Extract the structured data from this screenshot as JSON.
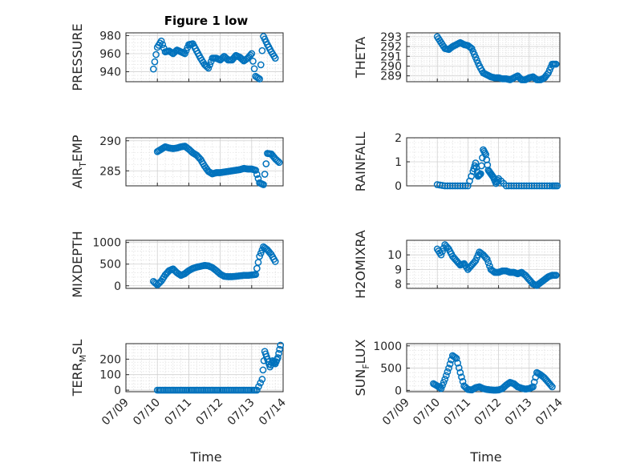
{
  "figure": {
    "title": "Figure 1 low",
    "xlabel": "Time",
    "date_ticks": [
      "07/09",
      "07/10",
      "07/11",
      "07/12",
      "07/13",
      "07/14"
    ],
    "marker_color": "#0072BD"
  },
  "chart_data": [
    {
      "type": "scatter",
      "id": "pressure",
      "title": "Figure 1 low",
      "ylabel_main": "PRESSURE",
      "ylabel_sub": "",
      "xlim": [
        "07/09",
        "07/14"
      ],
      "ylim": [
        929,
        983
      ],
      "yticks": [
        "940",
        "960",
        "980"
      ],
      "grid": true,
      "series": [
        {
          "x": [
            "07/09 21:00",
            "07/10 00:00",
            "07/10 03:00",
            "07/10 06:00",
            "07/10 09:00",
            "07/10 12:00",
            "07/10 15:00",
            "07/10 18:00",
            "07/10 21:00",
            "07/11 00:00",
            "07/11 03:00",
            "07/11 06:00",
            "07/11 09:00",
            "07/11 12:00",
            "07/11 15:00",
            "07/11 18:00",
            "07/11 21:00",
            "07/12 00:00",
            "07/12 03:00",
            "07/12 06:00",
            "07/12 09:00",
            "07/12 12:00",
            "07/12 15:00",
            "07/12 18:00",
            "07/12 21:00",
            "07/13 00:00",
            "07/13 03:00",
            "07/13 06:00",
            "07/13 09:00",
            "07/13 12:00",
            "07/13 15:00",
            "07/13 18:00"
          ],
          "y": [
            943,
            967,
            974,
            962,
            963,
            960,
            964,
            962,
            960,
            970,
            971,
            963,
            955,
            948,
            944,
            955,
            955,
            953,
            957,
            953,
            953,
            958,
            956,
            952,
            955,
            960,
            935,
            932,
            979,
            970,
            962,
            955
          ]
        }
      ]
    },
    {
      "type": "scatter",
      "id": "theta",
      "title": "",
      "ylabel_main": "THETA",
      "ylabel_sub": "",
      "xlim": [
        "07/09",
        "07/14"
      ],
      "ylim": [
        288.4,
        293.4
      ],
      "yticks": [
        "289",
        "290",
        "291",
        "292",
        "293"
      ],
      "grid": true,
      "series": [
        {
          "x": [
            "07/10 00:00",
            "07/10 03:00",
            "07/10 06:00",
            "07/10 09:00",
            "07/10 12:00",
            "07/10 15:00",
            "07/10 18:00",
            "07/10 21:00",
            "07/11 00:00",
            "07/11 03:00",
            "07/11 06:00",
            "07/11 09:00",
            "07/11 12:00",
            "07/11 15:00",
            "07/11 18:00",
            "07/11 21:00",
            "07/12 00:00",
            "07/12 03:00",
            "07/12 06:00",
            "07/12 09:00",
            "07/12 12:00",
            "07/12 15:00",
            "07/12 18:00",
            "07/12 21:00",
            "07/13 00:00",
            "07/13 03:00",
            "07/13 06:00",
            "07/13 09:00",
            "07/13 12:00",
            "07/13 15:00",
            "07/13 18:00",
            "07/13 21:00"
          ],
          "y": [
            293.0,
            292.4,
            291.8,
            291.7,
            292.0,
            292.2,
            292.4,
            292.2,
            292.1,
            291.8,
            290.9,
            290.0,
            289.3,
            289.1,
            288.9,
            288.8,
            288.8,
            288.7,
            288.7,
            288.6,
            288.8,
            289.0,
            288.6,
            288.6,
            288.8,
            288.9,
            288.6,
            288.6,
            288.8,
            289.3,
            290.2,
            290.2
          ]
        }
      ]
    },
    {
      "type": "scatter",
      "id": "air-temp",
      "title": "",
      "ylabel_main": "AIR",
      "ylabel_sub": "T",
      "ylabel_after": "EMP",
      "xlim": [
        "07/09",
        "07/14"
      ],
      "ylim": [
        282.5,
        290.5
      ],
      "yticks": [
        "285",
        "290"
      ],
      "grid": true,
      "series": [
        {
          "x": [
            "07/10 00:00",
            "07/10 03:00",
            "07/10 06:00",
            "07/10 09:00",
            "07/10 12:00",
            "07/10 15:00",
            "07/10 18:00",
            "07/10 21:00",
            "07/11 00:00",
            "07/11 03:00",
            "07/11 06:00",
            "07/11 09:00",
            "07/11 12:00",
            "07/11 15:00",
            "07/11 18:00",
            "07/11 21:00",
            "07/12 00:00",
            "07/12 03:00",
            "07/12 06:00",
            "07/12 09:00",
            "07/12 12:00",
            "07/12 15:00",
            "07/12 18:00",
            "07/12 21:00",
            "07/13 00:00",
            "07/13 03:00",
            "07/13 06:00",
            "07/13 09:00",
            "07/13 12:00",
            "07/13 15:00",
            "07/13 18:00",
            "07/13 21:00"
          ],
          "y": [
            288.2,
            288.6,
            289.0,
            288.8,
            288.7,
            288.8,
            289.0,
            289.1,
            288.6,
            288.0,
            287.6,
            286.9,
            285.8,
            284.9,
            284.5,
            284.7,
            284.7,
            284.8,
            284.9,
            285.0,
            285.1,
            285.2,
            285.4,
            285.3,
            285.3,
            285.1,
            283.0,
            282.7,
            287.9,
            287.8,
            287.0,
            286.4
          ]
        }
      ]
    },
    {
      "type": "scatter",
      "id": "rainfall",
      "title": "",
      "ylabel_main": "RAINFALL",
      "ylabel_sub": "",
      "xlim": [
        "07/09",
        "07/14"
      ],
      "ylim": [
        0,
        2
      ],
      "yticks": [
        "0",
        "1",
        "2"
      ],
      "grid": true,
      "series": [
        {
          "x": [
            "07/10 00:00",
            "07/10 06:00",
            "07/10 12:00",
            "07/10 18:00",
            "07/11 00:00",
            "07/11 04:00",
            "07/11 06:00",
            "07/11 08:00",
            "07/11 10:00",
            "07/11 12:00",
            "07/11 14:00",
            "07/11 16:00",
            "07/11 18:00",
            "07/11 20:00",
            "07/11 22:00",
            "07/12 00:00",
            "07/12 06:00",
            "07/12 12:00",
            "07/12 18:00",
            "07/13 00:00",
            "07/13 06:00",
            "07/13 12:00",
            "07/13 18:00",
            "07/13 22:00"
          ],
          "y": [
            0.05,
            0,
            0,
            0,
            0,
            0.6,
            0.95,
            0.4,
            0.5,
            1.5,
            1.3,
            0.65,
            0.5,
            0.35,
            0.1,
            0.3,
            0,
            0,
            0,
            0,
            0,
            0,
            0,
            0
          ]
        }
      ]
    },
    {
      "type": "scatter",
      "id": "mixdepth",
      "title": "",
      "ylabel_main": "MIXDEPTH",
      "ylabel_sub": "",
      "xlim": [
        "07/09",
        "07/14"
      ],
      "ylim": [
        -60,
        1050
      ],
      "yticks": [
        "0",
        "500",
        "1000"
      ],
      "grid": true,
      "series": [
        {
          "x": [
            "07/09 21:00",
            "07/10 00:00",
            "07/10 03:00",
            "07/10 06:00",
            "07/10 09:00",
            "07/10 12:00",
            "07/10 15:00",
            "07/10 18:00",
            "07/10 21:00",
            "07/11 00:00",
            "07/11 03:00",
            "07/11 06:00",
            "07/11 09:00",
            "07/11 12:00",
            "07/11 15:00",
            "07/11 18:00",
            "07/11 21:00",
            "07/12 00:00",
            "07/12 03:00",
            "07/12 06:00",
            "07/12 09:00",
            "07/12 12:00",
            "07/12 15:00",
            "07/12 18:00",
            "07/12 21:00",
            "07/13 00:00",
            "07/13 03:00",
            "07/13 06:00",
            "07/13 09:00",
            "07/13 12:00",
            "07/13 15:00",
            "07/13 18:00"
          ],
          "y": [
            100,
            20,
            110,
            250,
            350,
            390,
            300,
            240,
            280,
            350,
            400,
            430,
            450,
            470,
            460,
            420,
            350,
            270,
            220,
            210,
            210,
            220,
            230,
            240,
            240,
            250,
            260,
            680,
            900,
            830,
            720,
            560
          ]
        }
      ]
    },
    {
      "type": "scatter",
      "id": "h2omixra",
      "title": "",
      "ylabel_main": "H2OMIXRA",
      "ylabel_sub": "",
      "xlim": [
        "07/09",
        "07/14"
      ],
      "ylim": [
        7.7,
        11.0
      ],
      "yticks": [
        "8",
        "9",
        "10"
      ],
      "grid": true,
      "series": [
        {
          "x": [
            "07/10 00:00",
            "07/10 03:00",
            "07/10 06:00",
            "07/10 09:00",
            "07/10 12:00",
            "07/10 15:00",
            "07/10 18:00",
            "07/10 21:00",
            "07/11 00:00",
            "07/11 03:00",
            "07/11 06:00",
            "07/11 09:00",
            "07/11 12:00",
            "07/11 15:00",
            "07/11 18:00",
            "07/11 21:00",
            "07/12 00:00",
            "07/12 03:00",
            "07/12 06:00",
            "07/12 09:00",
            "07/12 12:00",
            "07/12 15:00",
            "07/12 18:00",
            "07/12 21:00",
            "07/13 00:00",
            "07/13 03:00",
            "07/13 06:00",
            "07/13 09:00",
            "07/13 12:00",
            "07/13 15:00",
            "07/13 18:00",
            "07/13 21:00"
          ],
          "y": [
            10.4,
            10.0,
            10.7,
            10.4,
            9.9,
            9.6,
            9.3,
            9.4,
            9.0,
            9.3,
            9.6,
            10.2,
            10.0,
            9.7,
            9.0,
            8.8,
            8.8,
            8.9,
            8.9,
            8.8,
            8.8,
            8.7,
            8.8,
            8.6,
            8.3,
            8.0,
            7.9,
            8.1,
            8.3,
            8.5,
            8.6,
            8.6
          ]
        }
      ]
    },
    {
      "type": "scatter",
      "id": "terr-msl",
      "title": "",
      "ylabel_main": "TERR",
      "ylabel_sub": "M",
      "ylabel_after": "SL",
      "xlim": [
        "07/09",
        "07/14"
      ],
      "ylim": [
        -10,
        300
      ],
      "yticks": [
        "0",
        "100",
        "200"
      ],
      "grid": true,
      "series": [
        {
          "x": [
            "07/10 00:00",
            "07/10 04:00",
            "07/10 08:00",
            "07/10 12:00",
            "07/10 16:00",
            "07/10 20:00",
            "07/11 00:00",
            "07/11 04:00",
            "07/11 08:00",
            "07/11 12:00",
            "07/11 16:00",
            "07/11 20:00",
            "07/12 00:00",
            "07/12 04:00",
            "07/12 08:00",
            "07/12 12:00",
            "07/12 16:00",
            "07/12 20:00",
            "07/13 00:00",
            "07/13 04:00",
            "07/13 08:00",
            "07/13 10:00",
            "07/13 12:00",
            "07/13 14:00",
            "07/13 16:00",
            "07/13 18:00",
            "07/13 20:00",
            "07/13 22:00"
          ],
          "y": [
            0,
            0,
            0,
            0,
            0,
            0,
            0,
            0,
            0,
            0,
            0,
            0,
            0,
            0,
            0,
            0,
            0,
            0,
            0,
            0,
            70,
            250,
            200,
            150,
            190,
            170,
            210,
            290
          ]
        }
      ]
    },
    {
      "type": "scatter",
      "id": "sun-flux",
      "title": "",
      "ylabel_main": "SUN",
      "ylabel_sub": "F",
      "ylabel_after": "LUX",
      "xlim": [
        "07/09",
        "07/14"
      ],
      "ylim": [
        -30,
        1050
      ],
      "yticks": [
        "0",
        "500",
        "1000"
      ],
      "grid": true,
      "series": [
        {
          "x": [
            "07/09 21:00",
            "07/10 00:00",
            "07/10 03:00",
            "07/10 06:00",
            "07/10 09:00",
            "07/10 12:00",
            "07/10 15:00",
            "07/10 18:00",
            "07/10 21:00",
            "07/11 00:00",
            "07/11 03:00",
            "07/11 06:00",
            "07/11 09:00",
            "07/11 12:00",
            "07/11 15:00",
            "07/11 18:00",
            "07/11 21:00",
            "07/12 00:00",
            "07/12 03:00",
            "07/12 06:00",
            "07/12 09:00",
            "07/12 12:00",
            "07/12 15:00",
            "07/12 18:00",
            "07/12 21:00",
            "07/13 00:00",
            "07/13 03:00",
            "07/13 06:00",
            "07/13 09:00",
            "07/13 12:00",
            "07/13 15:00",
            "07/13 18:00"
          ],
          "y": [
            150,
            100,
            40,
            250,
            500,
            780,
            720,
            400,
            100,
            20,
            10,
            60,
            80,
            40,
            20,
            10,
            5,
            10,
            40,
            120,
            180,
            150,
            80,
            50,
            30,
            40,
            80,
            400,
            350,
            280,
            180,
            80
          ]
        }
      ]
    }
  ]
}
